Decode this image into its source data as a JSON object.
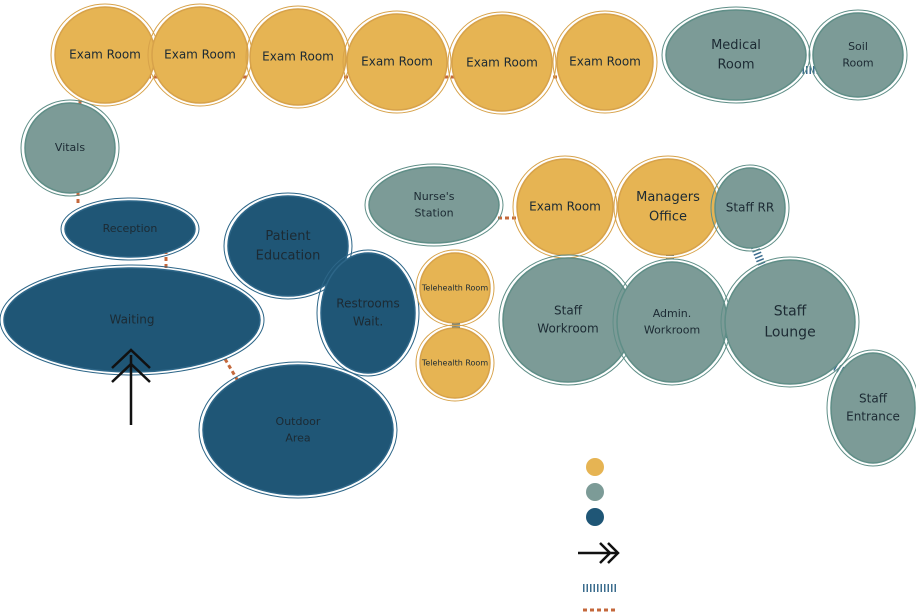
{
  "nodes": [
    {
      "lines": [
        "Exam Room"
      ]
    },
    {
      "lines": [
        "Exam Room"
      ]
    },
    {
      "lines": [
        "Exam Room"
      ]
    },
    {
      "lines": [
        "Exam Room"
      ]
    },
    {
      "lines": [
        "Exam Room"
      ]
    },
    {
      "lines": [
        "Exam Room"
      ]
    },
    {
      "lines": [
        "Medical",
        "Room"
      ]
    },
    {
      "lines": [
        "Soil",
        "Room"
      ]
    },
    {
      "lines": [
        "Vitals"
      ]
    },
    {
      "lines": [
        "Reception"
      ]
    },
    {
      "lines": [
        "Waiting"
      ]
    },
    {
      "lines": [
        "Patient",
        "Education"
      ]
    },
    {
      "lines": [
        "Restrooms",
        "Wait."
      ]
    },
    {
      "lines": [
        "Outdoor",
        "Area"
      ]
    },
    {
      "lines": [
        "Nurse's",
        "Station"
      ]
    },
    {
      "lines": [
        "Exam Room"
      ]
    },
    {
      "lines": [
        "Managers",
        "Office"
      ]
    },
    {
      "lines": [
        "Staff RR"
      ]
    },
    {
      "lines": [
        "Telehealth Room"
      ]
    },
    {
      "lines": [
        "Telehealth Room"
      ]
    },
    {
      "lines": [
        "Staff",
        "Workroom"
      ]
    },
    {
      "lines": [
        "Admin.",
        "Workroom"
      ]
    },
    {
      "lines": [
        "Staff",
        "Lounge"
      ]
    },
    {
      "lines": [
        "Staff",
        "Entrance"
      ]
    }
  ]
}
